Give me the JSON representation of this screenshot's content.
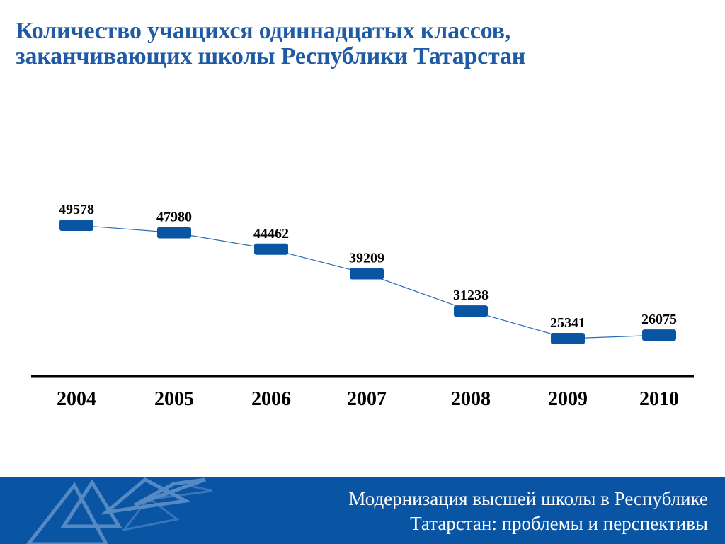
{
  "title": {
    "line1": "Количество учащихся одиннадцатых классов,",
    "line2": "заканчивающих школы Республики Татарстан"
  },
  "chart_data": {
    "type": "line",
    "categories": [
      "2004",
      "2005",
      "2006",
      "2007",
      "2008",
      "2009",
      "2010"
    ],
    "values": [
      49578,
      47980,
      44462,
      39209,
      31238,
      25341,
      26075
    ],
    "data_labels": [
      "49578",
      "47980",
      "44462",
      "39209",
      "31238",
      "25341",
      "26075"
    ],
    "marker": "rounded-rectangle",
    "colors": {
      "marker": "#0a55a3",
      "line": "#2a6db8",
      "axis": "#000000",
      "labels": "#000000"
    },
    "ylim": [
      17000,
      52000
    ],
    "grid": false,
    "legend": "none"
  },
  "footer": {
    "line1": "Модернизация высшей школы в Республике",
    "line2": "Татарстан: проблемы и перспективы",
    "logo_icon": "triangles-logo-icon",
    "colors": {
      "band": "#0a55a3",
      "text": "#ffffff"
    }
  }
}
